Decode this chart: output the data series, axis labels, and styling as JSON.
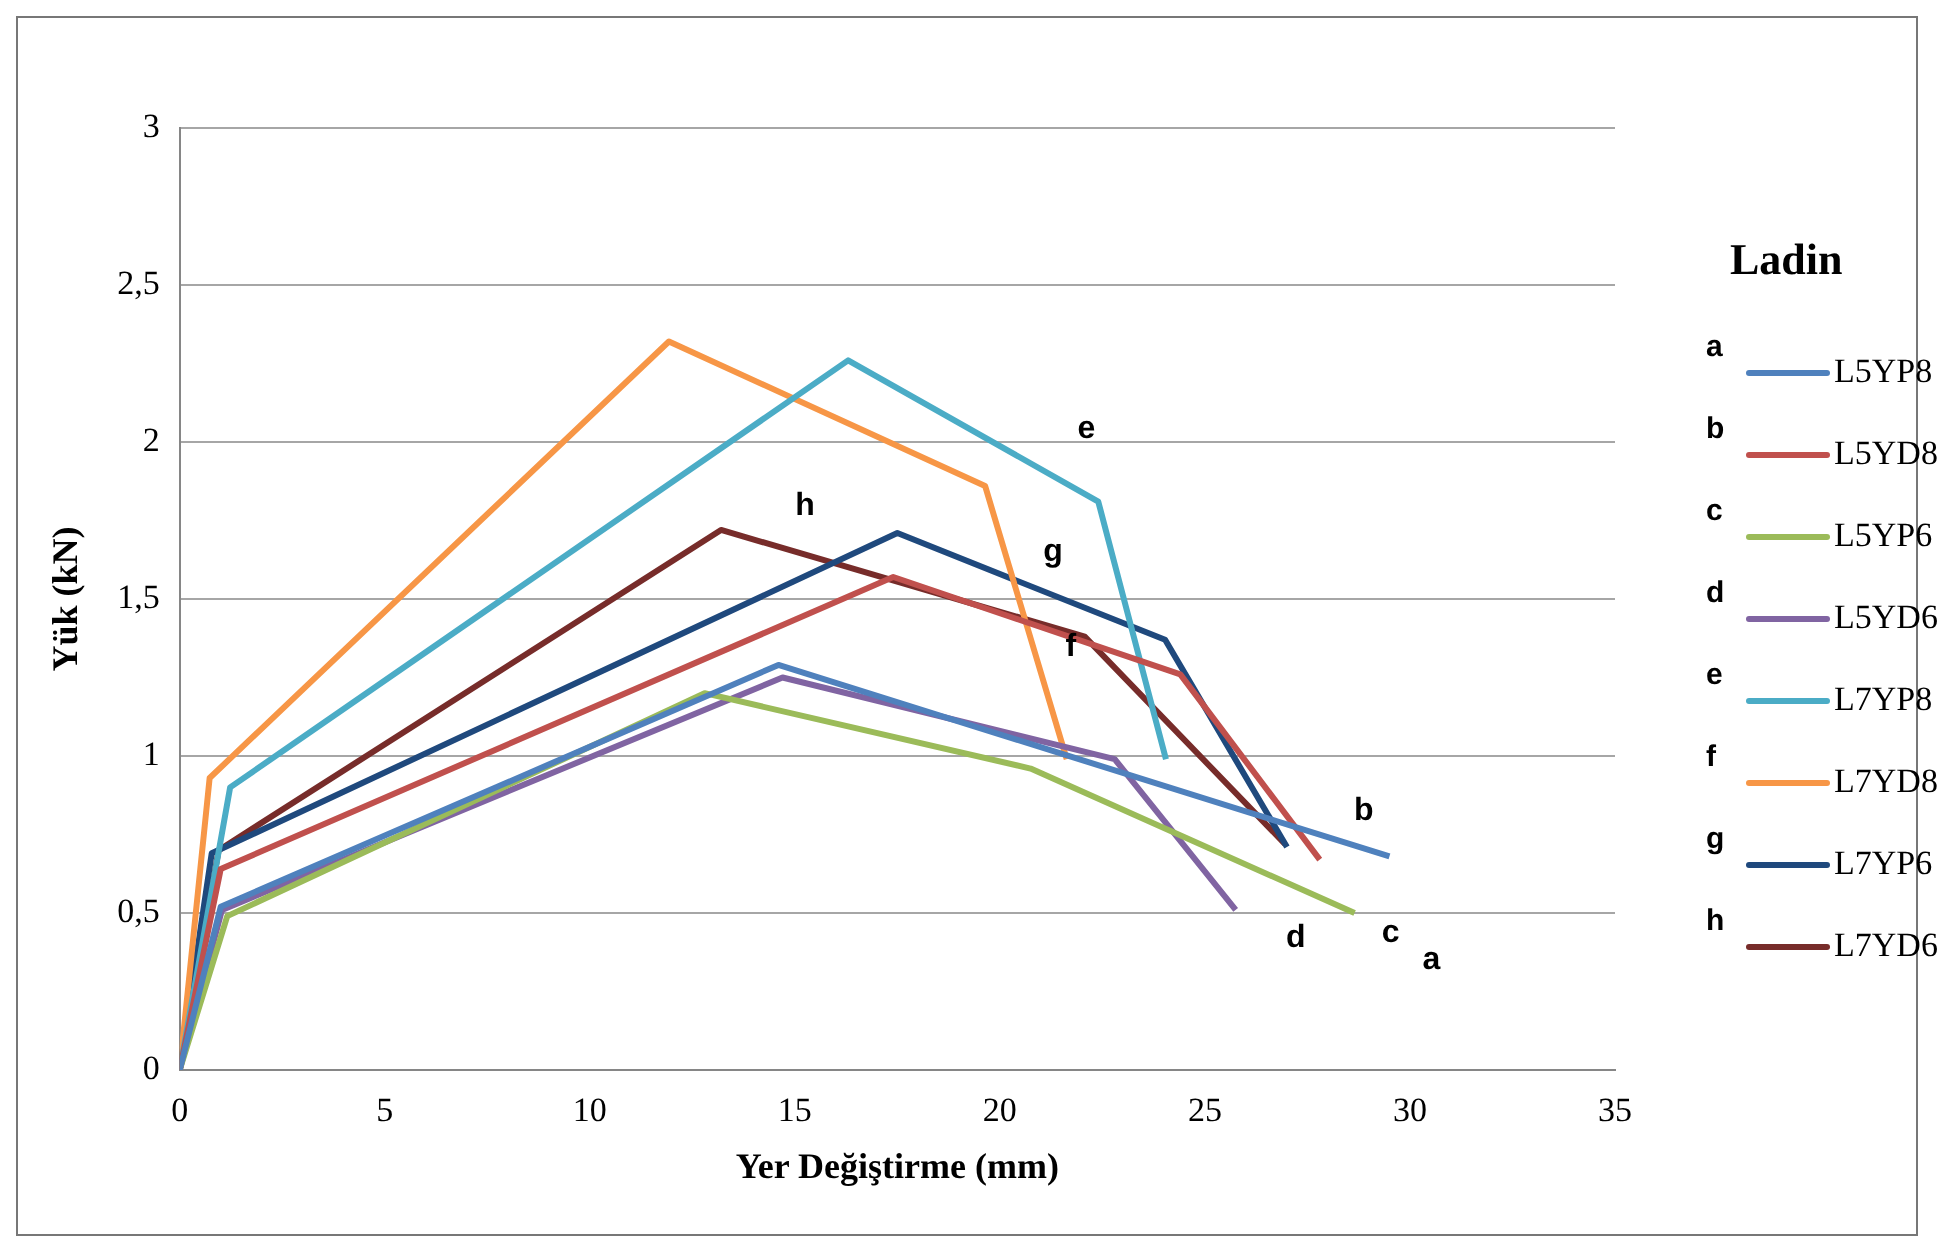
{
  "chart_data": {
    "type": "line",
    "xlabel": "Yer Değiştirme (mm)",
    "ylabel": "Yük (kN)",
    "legend_title": "Ladin",
    "legend": "right",
    "grid": "y",
    "marker": "none",
    "line_style": "solid",
    "xlim": [
      0,
      35
    ],
    "xticks": [
      0,
      5,
      10,
      15,
      20,
      25,
      30,
      35
    ],
    "ylim": [
      0,
      3
    ],
    "yticks": [
      0,
      {
        "value": 0.5,
        "label": "0,5"
      },
      1,
      {
        "value": 1.5,
        "label": "1,5"
      },
      2,
      {
        "value": 2.5,
        "label": "2,5"
      },
      3
    ],
    "series": [
      {
        "name": "L5YP8",
        "color": "#4f81bd",
        "x": [
          0,
          1.0,
          14.6,
          29.5
        ],
        "values": [
          0,
          0.52,
          1.29,
          0.68
        ]
      },
      {
        "name": "L5YD8",
        "color": "#c0504d",
        "x": [
          0,
          1.0,
          17.4,
          24.4,
          27.8
        ],
        "values": [
          0,
          0.64,
          1.57,
          1.26,
          0.67
        ]
      },
      {
        "name": "L5YP6",
        "color": "#9bbb59",
        "x": [
          0,
          1.16,
          12.8,
          20.75,
          28.65
        ],
        "values": [
          0,
          0.49,
          1.2,
          0.96,
          0.5
        ]
      },
      {
        "name": "L5YD6",
        "color": "#8064a2",
        "x": [
          0,
          1.03,
          14.7,
          22.8,
          25.75
        ],
        "values": [
          0,
          0.51,
          1.25,
          0.99,
          0.51
        ]
      },
      {
        "name": "L7YP8",
        "color": "#4bacc6",
        "x": [
          0,
          1.23,
          16.3,
          22.4,
          24.05
        ],
        "values": [
          0,
          0.9,
          2.26,
          1.81,
          0.99
        ]
      },
      {
        "name": "L7YD8",
        "color": "#f79646",
        "x": [
          0,
          0.73,
          11.93,
          19.64,
          21.63
        ],
        "values": [
          0,
          0.93,
          2.32,
          1.86,
          0.99
        ]
      },
      {
        "name": "L7YP6",
        "color": "#1f497d",
        "x": [
          0,
          0.78,
          17.5,
          24.03,
          27.0
        ],
        "values": [
          0,
          0.69,
          1.71,
          1.37,
          0.71
        ]
      },
      {
        "name": "L7YD6",
        "color": "#772c2a",
        "x": [
          0,
          0.95,
          13.2,
          22.07,
          26.95
        ],
        "values": [
          0,
          0.7,
          1.72,
          1.38,
          0.72
        ]
      }
    ],
    "annotations": [
      "a",
      "b",
      "c",
      "d",
      "e",
      "f",
      "g",
      "h"
    ]
  }
}
